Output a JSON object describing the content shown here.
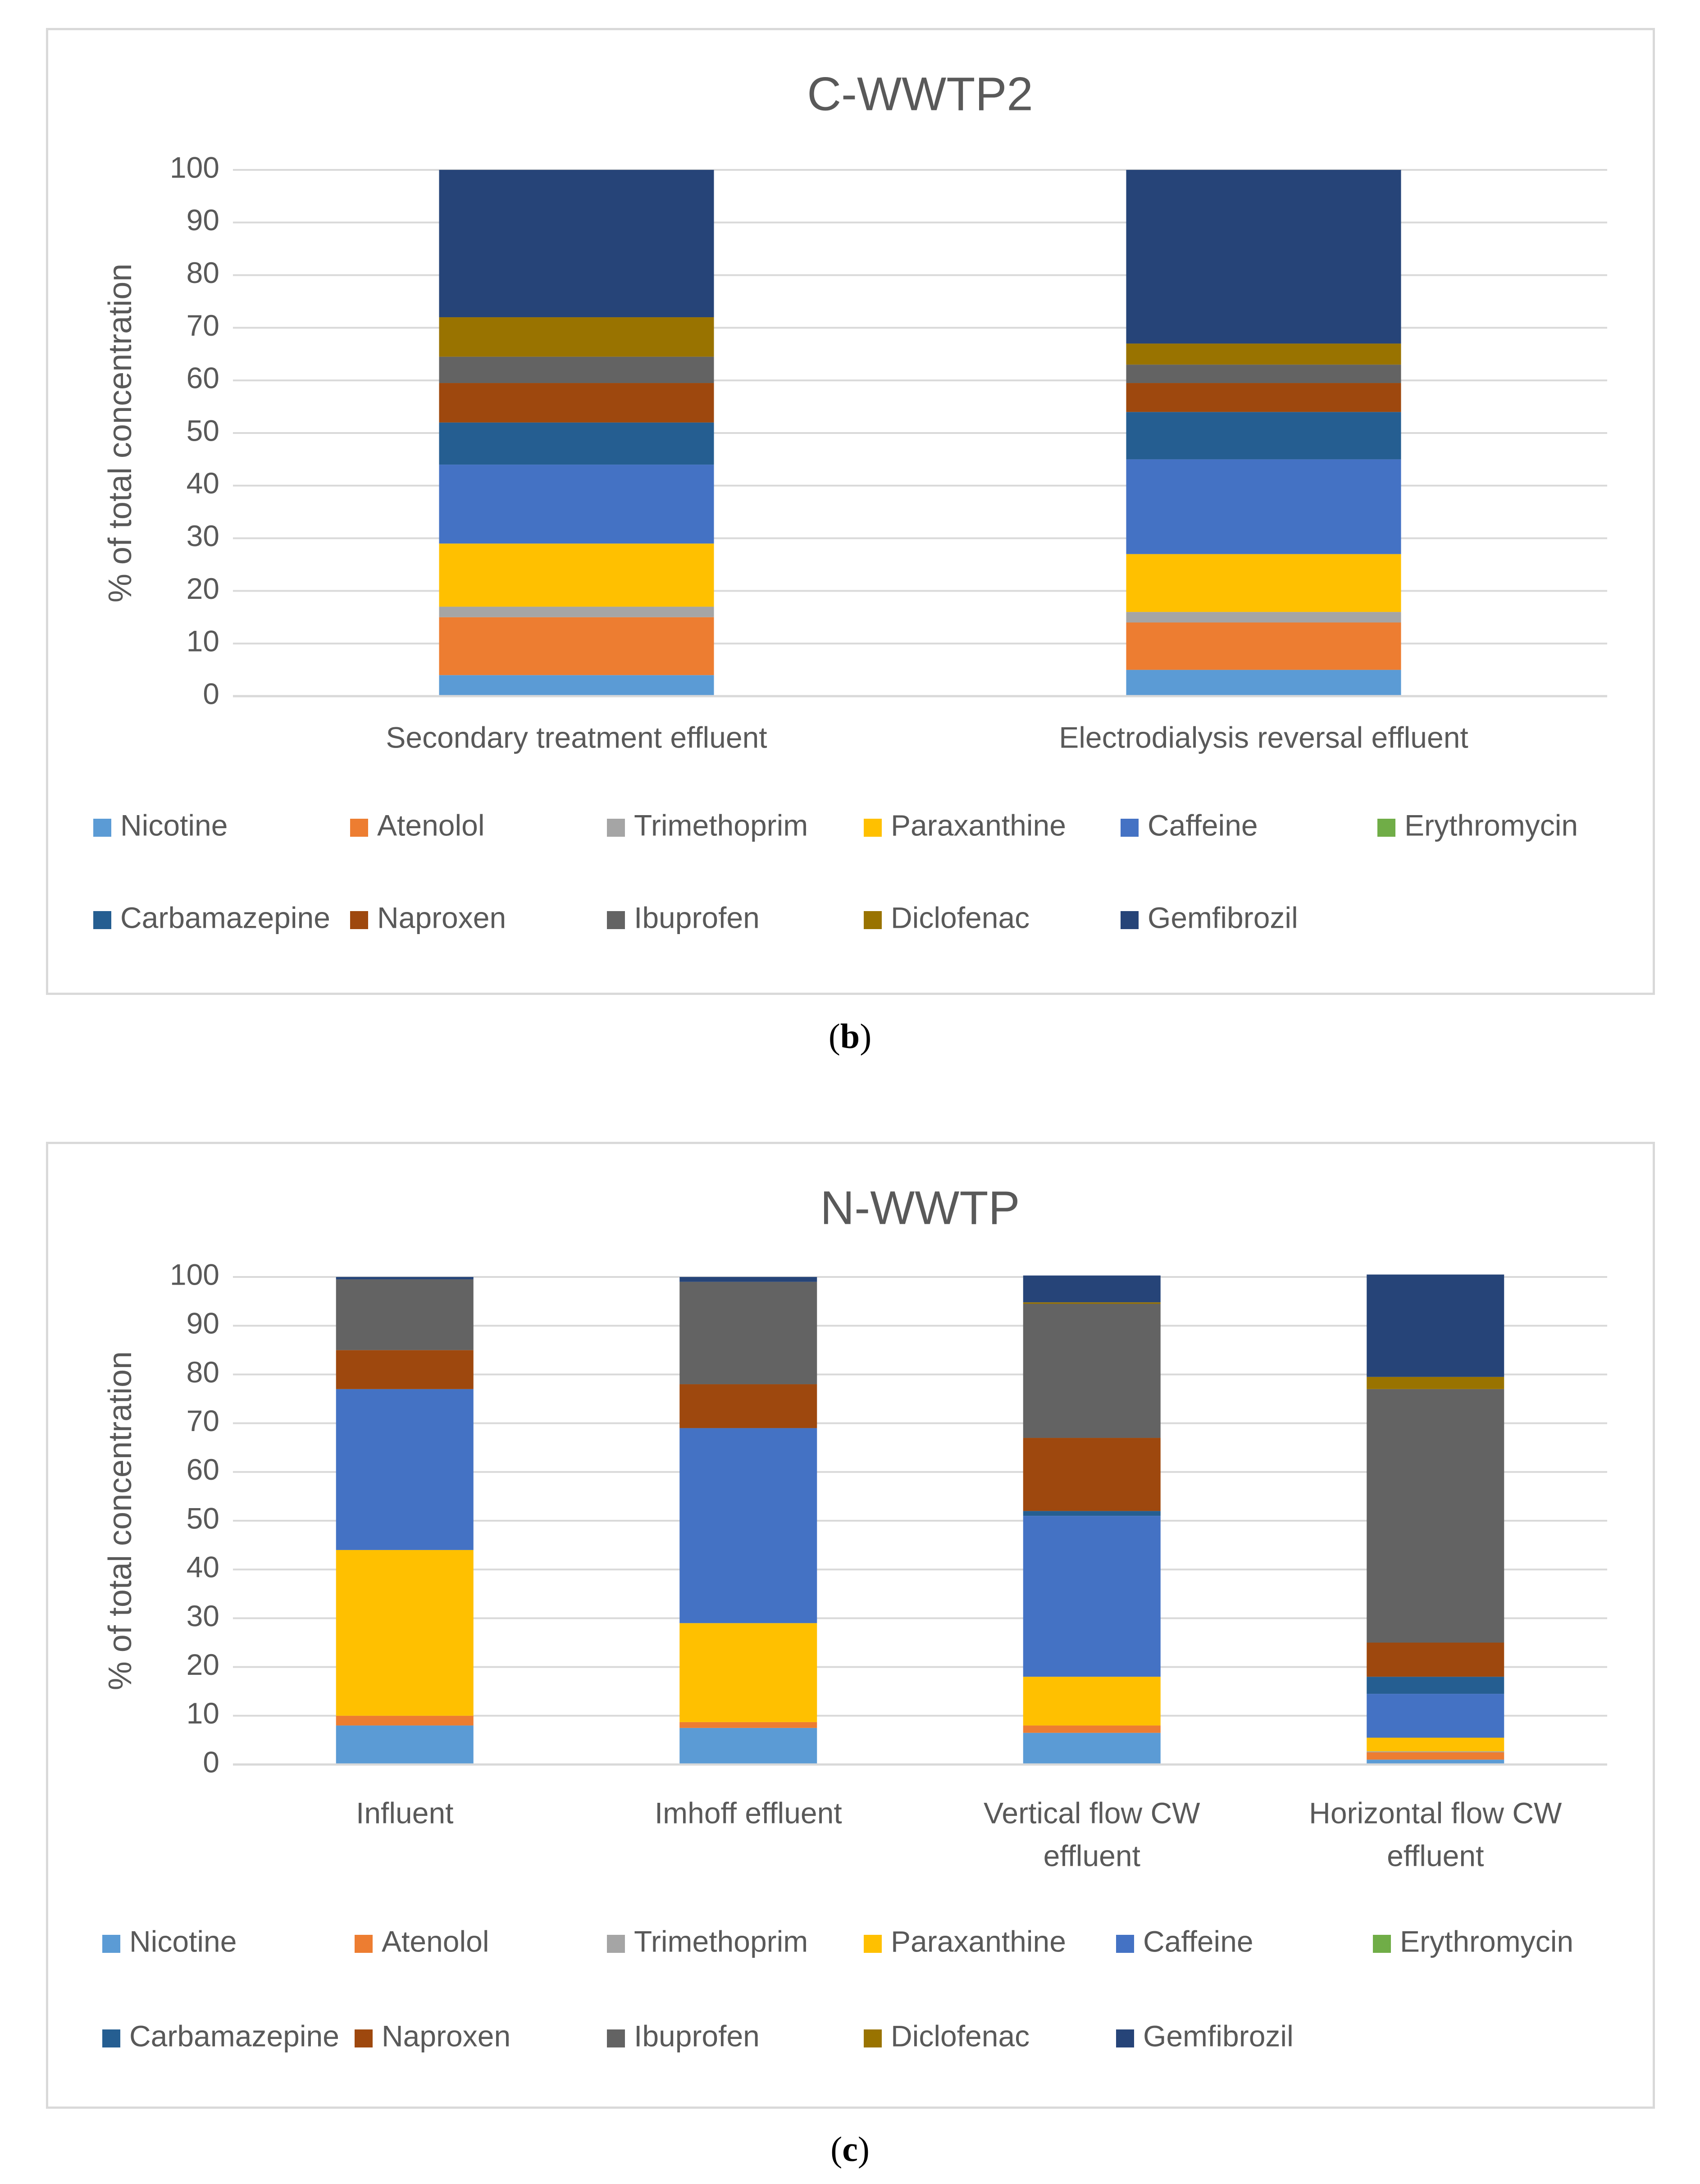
{
  "chart_data": [
    {
      "type": "bar",
      "stacked": true,
      "title": "C-WWTP2",
      "ylabel": "% of total concentration",
      "xlabel": "",
      "ylim": [
        0,
        100
      ],
      "yticks": [
        0,
        10,
        20,
        30,
        40,
        50,
        60,
        70,
        80,
        90,
        100
      ],
      "grid": true,
      "legend_position": "bottom",
      "categories": [
        [
          "Secondary treatment effluent"
        ],
        [
          "Electrodialysis reversal effluent"
        ]
      ],
      "series": [
        {
          "name": "Nicotine",
          "color": "#5b9bd5",
          "values": [
            4,
            5
          ]
        },
        {
          "name": "Atenolol",
          "color": "#ed7d31",
          "values": [
            11,
            9
          ]
        },
        {
          "name": "Trimethoprim",
          "color": "#a5a5a5",
          "values": [
            2,
            2
          ]
        },
        {
          "name": "Paraxanthine",
          "color": "#ffc000",
          "values": [
            12,
            11
          ]
        },
        {
          "name": "Caffeine",
          "color": "#4472c4",
          "values": [
            15,
            18
          ]
        },
        {
          "name": "Erythromycin",
          "color": "#70ad47",
          "values": [
            0,
            0
          ]
        },
        {
          "name": "Carbamazepine",
          "color": "#255e91",
          "values": [
            8,
            9
          ]
        },
        {
          "name": "Naproxen",
          "color": "#9e480e",
          "values": [
            7.5,
            5.5
          ]
        },
        {
          "name": "Ibuprofen",
          "color": "#636363",
          "values": [
            5,
            3.5
          ]
        },
        {
          "name": "Diclofenac",
          "color": "#997300",
          "values": [
            7.5,
            4
          ]
        },
        {
          "name": "Gemfibrozil",
          "color": "#264478",
          "values": [
            28,
            33
          ]
        }
      ]
    },
    {
      "type": "bar",
      "stacked": true,
      "title": "N-WWTP",
      "ylabel": "% of total concentration",
      "xlabel": "",
      "ylim": [
        0,
        100
      ],
      "yticks": [
        0,
        10,
        20,
        30,
        40,
        50,
        60,
        70,
        80,
        90,
        100
      ],
      "grid": true,
      "legend_position": "bottom",
      "categories": [
        [
          "Influent"
        ],
        [
          "Imhoff effluent"
        ],
        [
          "Vertical flow CW",
          "effluent"
        ],
        [
          "Horizontal flow CW",
          "effluent"
        ]
      ],
      "series": [
        {
          "name": "Nicotine",
          "color": "#5b9bd5",
          "values": [
            8,
            7.5,
            6.5,
            1
          ]
        },
        {
          "name": "Atenolol",
          "color": "#ed7d31",
          "values": [
            2,
            1.2,
            1.5,
            1.5
          ]
        },
        {
          "name": "Trimethoprim",
          "color": "#a5a5a5",
          "values": [
            0,
            0,
            0,
            0.2
          ]
        },
        {
          "name": "Paraxanthine",
          "color": "#ffc000",
          "values": [
            34,
            20.3,
            10,
            2.8
          ]
        },
        {
          "name": "Caffeine",
          "color": "#4472c4",
          "values": [
            33,
            40,
            33,
            9
          ]
        },
        {
          "name": "Erythromycin",
          "color": "#70ad47",
          "values": [
            0,
            0,
            0,
            0
          ]
        },
        {
          "name": "Carbamazepine",
          "color": "#255e91",
          "values": [
            0,
            0,
            1,
            3.5
          ]
        },
        {
          "name": "Naproxen",
          "color": "#9e480e",
          "values": [
            8,
            9,
            15,
            7
          ]
        },
        {
          "name": "Ibuprofen",
          "color": "#636363",
          "values": [
            14.5,
            21,
            27.5,
            52
          ]
        },
        {
          "name": "Diclofenac",
          "color": "#997300",
          "values": [
            0,
            0,
            0.3,
            2.5
          ]
        },
        {
          "name": "Gemfibrozil",
          "color": "#264478",
          "values": [
            0.5,
            1,
            5.5,
            21
          ]
        }
      ]
    }
  ],
  "captions": {
    "b": {
      "open": "(",
      "letter": "b",
      "close": ")"
    },
    "c": {
      "open": "(",
      "letter": "c",
      "close": ")"
    }
  }
}
